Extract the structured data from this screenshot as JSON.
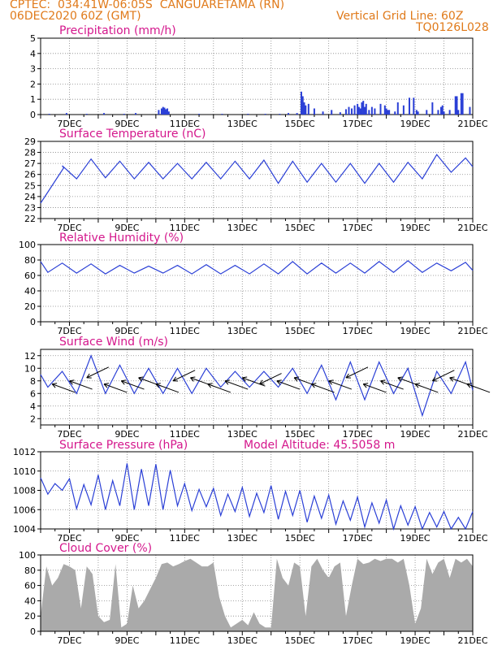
{
  "header": {
    "line1": "CPTEC:  034:41W-06:05S  CANGUARETAMA (RN)",
    "line2": "06DEC2020 60Z (GMT)",
    "grid_note": "Vertical Grid Line: 60Z",
    "code": "TQ0126L028"
  },
  "colors": {
    "header": "#e07a1a",
    "title": "#d4178c",
    "line": "#2a3fd6",
    "bar": "#2a3fd6",
    "cloud": "#aaaaaa",
    "arrow": "#000000"
  },
  "chart_data": [
    {
      "type": "bar",
      "title": "Precipitation (mm/h)",
      "xlabels": [
        "7DEC",
        "9DEC",
        "11DEC",
        "13DEC",
        "15DEC",
        "17DEC",
        "19DEC",
        "21DEC"
      ],
      "ylim": [
        0,
        5
      ],
      "yticks": [
        0,
        1,
        2,
        3,
        4,
        5
      ],
      "x_days": [
        6.3,
        6.9,
        7.6,
        8.2,
        8.9,
        9.3,
        10.1,
        10.2,
        10.25,
        10.3,
        10.35,
        10.4,
        10.45,
        11.5,
        12.3,
        13.2,
        13.8,
        14.3,
        14.6,
        14.9,
        15.05,
        15.1,
        15.15,
        15.2,
        15.3,
        15.5,
        15.8,
        16.1,
        16.4,
        16.6,
        16.7,
        16.8,
        16.9,
        17.0,
        17.05,
        17.1,
        17.15,
        17.2,
        17.25,
        17.3,
        17.4,
        17.5,
        17.6,
        17.8,
        17.95,
        18.0,
        18.05,
        18.1,
        18.3,
        18.4,
        18.6,
        18.8,
        18.95,
        19.05,
        19.1,
        19.4,
        19.6,
        19.8,
        19.9,
        19.95,
        20.0,
        20.2,
        20.4,
        20.45,
        20.5,
        20.6,
        20.65,
        20.9
      ],
      "values": [
        0.05,
        0.1,
        0.05,
        0.1,
        0.05,
        0.1,
        0.3,
        0.4,
        0.5,
        0.45,
        0.35,
        0.4,
        0.2,
        0.05,
        0.05,
        0.05,
        0.05,
        0.05,
        0.1,
        0.1,
        1.5,
        1.2,
        0.8,
        0.6,
        0.7,
        0.4,
        0.2,
        0.3,
        0.15,
        0.35,
        0.5,
        0.4,
        0.6,
        0.7,
        0.5,
        0.4,
        0.8,
        0.9,
        0.5,
        0.7,
        0.3,
        0.5,
        0.4,
        0.7,
        0.6,
        0.4,
        0.3,
        0.3,
        0.2,
        0.8,
        0.6,
        1.1,
        1.1,
        0.3,
        0.2,
        0.3,
        0.8,
        0.3,
        0.5,
        0.6,
        0.2,
        0.3,
        1.2,
        1.2,
        0.3,
        1.4,
        1.4,
        0.5
      ]
    },
    {
      "type": "line",
      "title": "Surface Temperature (nC)",
      "xlabels": [
        "7DEC",
        "9DEC",
        "11DEC",
        "13DEC",
        "15DEC",
        "17DEC",
        "19DEC",
        "21DEC"
      ],
      "ylim": [
        22,
        29
      ],
      "yticks": [
        22,
        23,
        24,
        25,
        26,
        27,
        28,
        29
      ],
      "series": [
        {
          "kind": "diurnal",
          "first": [
            6.0,
            23.4
          ],
          "rise_to": [
            6.8,
            26.6
          ],
          "days": [
            6,
            7,
            8,
            9,
            10,
            11,
            12,
            13,
            14,
            15,
            16,
            17,
            18,
            19,
            20
          ],
          "mins": [
            25.8,
            25.6,
            25.7,
            25.6,
            25.6,
            25.6,
            25.6,
            25.6,
            25.2,
            25.3,
            25.3,
            25.2,
            25.3,
            25.6,
            26.2
          ],
          "maxs": [
            26.8,
            27.4,
            27.2,
            27.1,
            27.0,
            27.1,
            27.2,
            27.3,
            27.2,
            27.0,
            27.0,
            27.0,
            27.1,
            27.8,
            27.5
          ]
        }
      ]
    },
    {
      "type": "line",
      "title": "Relative Humidity (%)",
      "xlabels": [
        "7DEC",
        "9DEC",
        "11DEC",
        "13DEC",
        "15DEC",
        "17DEC",
        "19DEC",
        "21DEC"
      ],
      "ylim": [
        0,
        100
      ],
      "yticks": [
        0,
        20,
        40,
        60,
        80,
        100
      ],
      "series": [
        {
          "kind": "diurnal",
          "first": [
            6.0,
            78
          ],
          "rise_to": [
            6.0,
            78
          ],
          "days": [
            6,
            7,
            8,
            9,
            10,
            11,
            12,
            13,
            14,
            15,
            16,
            17,
            18,
            19,
            20
          ],
          "mins": [
            64,
            63,
            62,
            63,
            63,
            62,
            62,
            62,
            62,
            62,
            63,
            63,
            64,
            64,
            66
          ],
          "maxs": [
            76,
            75,
            73,
            72,
            73,
            74,
            73,
            75,
            78,
            76,
            76,
            78,
            79,
            76,
            77
          ]
        }
      ]
    },
    {
      "type": "line",
      "title": "Surface Wind (m/s)",
      "xlabels": [
        "7DEC",
        "9DEC",
        "11DEC",
        "13DEC",
        "15DEC",
        "17DEC",
        "19DEC",
        "21DEC"
      ],
      "ylim": [
        1,
        13
      ],
      "yticks": [
        2,
        4,
        6,
        8,
        10,
        12
      ],
      "series": [
        {
          "kind": "diurnal",
          "first": [
            6.0,
            9
          ],
          "rise_to": [
            6.0,
            9
          ],
          "days": [
            6,
            7,
            8,
            9,
            10,
            11,
            12,
            13,
            14,
            15,
            16,
            17,
            18,
            19,
            20
          ],
          "mins": [
            7,
            6,
            6,
            6,
            6,
            6,
            7,
            7,
            7,
            6,
            5,
            5,
            6,
            2.5,
            6
          ],
          "maxs": [
            9.5,
            12,
            10.5,
            10,
            10,
            10,
            9.5,
            9.5,
            10,
            10.5,
            11,
            11,
            10,
            9.5,
            11
          ]
        }
      ],
      "wind_barbs_day": [
        6.4,
        7.0,
        7.6,
        8.2,
        8.8,
        9.4,
        10.0,
        10.6,
        11.2,
        11.8,
        12.4,
        13.0,
        13.6,
        14.2,
        14.8,
        15.4,
        16.0,
        16.6,
        17.2,
        17.8,
        18.4,
        19.0,
        19.6,
        20.2,
        20.8
      ]
    },
    {
      "type": "line",
      "title": "Surface Pressure (hPa)",
      "subtitle": "Model Altitude: 45.5058 m",
      "xlabels": [
        "7DEC",
        "9DEC",
        "11DEC",
        "13DEC",
        "15DEC",
        "17DEC",
        "19DEC",
        "21DEC"
      ],
      "ylim": [
        1004,
        1012
      ],
      "yticks": [
        1004,
        1006,
        1008,
        1010,
        1012
      ],
      "series": [
        {
          "kind": "semidiurnal",
          "days": [
            6,
            7,
            8,
            9,
            10,
            11,
            12,
            13,
            14,
            15,
            16,
            17,
            18,
            19,
            20
          ],
          "lows": [
            1007.6,
            1006.1,
            1006.0,
            1006.0,
            1006.0,
            1005.9,
            1005.4,
            1005.3,
            1005.0,
            1004.7,
            1004.5,
            1004.2,
            1004.0,
            1003.8,
            1003.6
          ],
          "highs": [
            1009.3,
            1009.2,
            1009.6,
            1010.8,
            1010.7,
            1008.7,
            1008.2,
            1008.3,
            1008.5,
            1008.0,
            1007.5,
            1007.3,
            1007.0,
            1006.3,
            1005.8
          ]
        }
      ]
    },
    {
      "type": "area",
      "title": "Cloud Cover (%)",
      "xlabels": [
        "7DEC",
        "9DEC",
        "11DEC",
        "13DEC",
        "15DEC",
        "17DEC",
        "19DEC",
        "21DEC"
      ],
      "ylim": [
        0,
        100
      ],
      "yticks": [
        0,
        20,
        40,
        60,
        80,
        100
      ],
      "x_days": [
        6.0,
        6.2,
        6.4,
        6.6,
        6.8,
        7.0,
        7.2,
        7.4,
        7.6,
        7.8,
        8.0,
        8.2,
        8.4,
        8.6,
        8.8,
        9.0,
        9.2,
        9.4,
        9.6,
        9.8,
        10.0,
        10.2,
        10.4,
        10.6,
        10.8,
        11.0,
        11.2,
        11.4,
        11.6,
        11.8,
        12.0,
        12.2,
        12.4,
        12.6,
        12.8,
        13.0,
        13.2,
        13.4,
        13.6,
        13.8,
        14.0,
        14.2,
        14.4,
        14.6,
        14.8,
        15.0,
        15.2,
        15.4,
        15.6,
        15.8,
        16.0,
        16.2,
        16.4,
        16.6,
        16.8,
        17.0,
        17.2,
        17.4,
        17.6,
        17.8,
        18.0,
        18.2,
        18.4,
        18.6,
        18.8,
        19.0,
        19.2,
        19.4,
        19.6,
        19.8,
        20.0,
        20.2,
        20.4,
        20.6,
        20.8,
        21.0
      ],
      "values": [
        20,
        85,
        60,
        70,
        88,
        85,
        80,
        30,
        85,
        75,
        20,
        12,
        15,
        88,
        5,
        10,
        60,
        30,
        40,
        55,
        70,
        88,
        90,
        85,
        88,
        92,
        95,
        90,
        85,
        85,
        90,
        45,
        20,
        5,
        10,
        15,
        8,
        25,
        10,
        5,
        5,
        95,
        70,
        60,
        90,
        85,
        20,
        85,
        95,
        80,
        70,
        85,
        90,
        20,
        60,
        95,
        88,
        90,
        95,
        92,
        95,
        95,
        90,
        95,
        60,
        10,
        30,
        95,
        75,
        90,
        95,
        70,
        95,
        90,
        95,
        85
      ]
    }
  ]
}
